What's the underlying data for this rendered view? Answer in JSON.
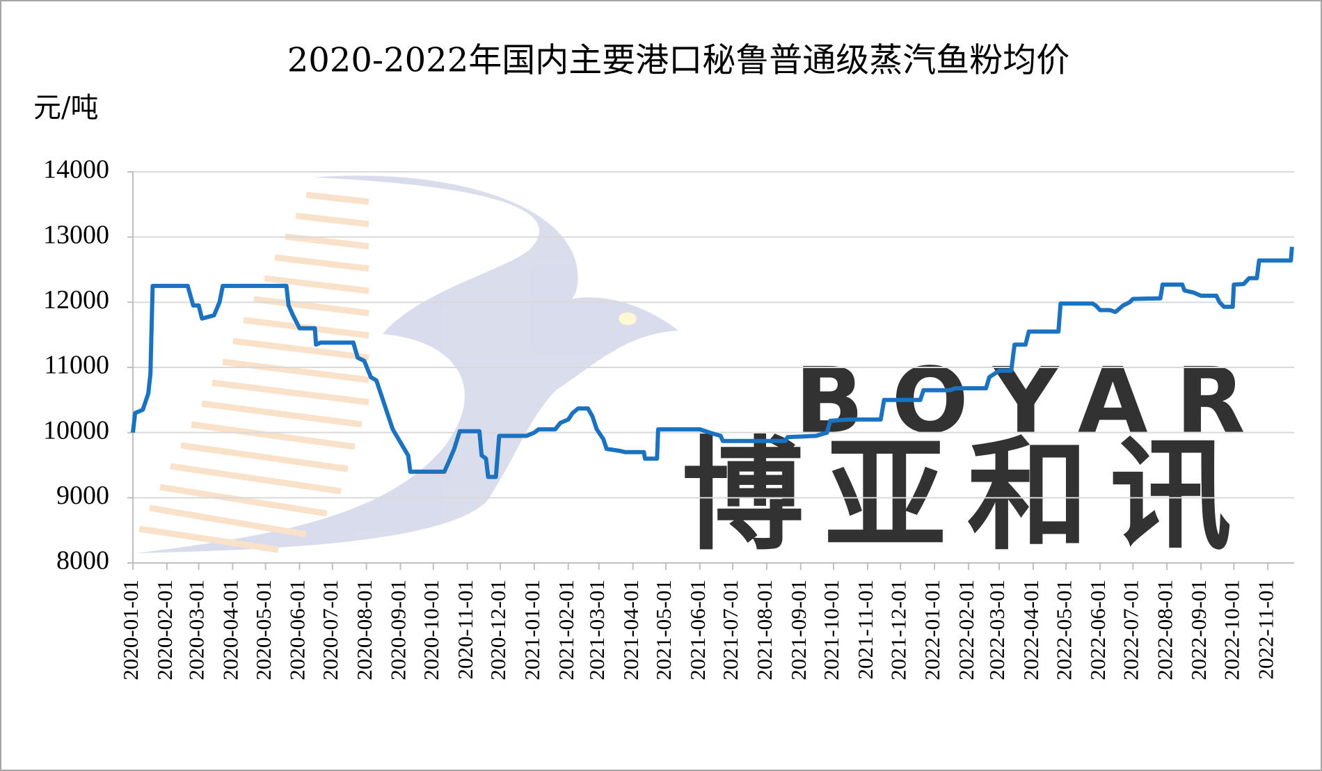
{
  "chart_data": {
    "type": "line",
    "title": "2020-2022年国内主要港口秘鲁普通级蒸汽鱼粉均价",
    "y_label": "元/吨",
    "watermark": {
      "brand": "BOYAR",
      "chinese": "博亚和讯"
    },
    "color": "#1a72c0",
    "grid": true,
    "ylim": [
      8000,
      14000
    ],
    "yticks": [
      8000,
      9000,
      10000,
      11000,
      12000,
      13000,
      14000
    ],
    "xlim": [
      "2020-01-01",
      "2022-11-25"
    ],
    "xticks": [
      "2020-01-01",
      "2020-02-01",
      "2020-03-01",
      "2020-04-01",
      "2020-05-01",
      "2020-06-01",
      "2020-07-01",
      "2020-08-01",
      "2020-09-01",
      "2020-10-01",
      "2020-11-01",
      "2020-12-01",
      "2021-01-01",
      "2021-02-01",
      "2021-03-01",
      "2021-04-01",
      "2021-05-01",
      "2021-06-01",
      "2021-07-01",
      "2021-08-01",
      "2021-09-01",
      "2021-10-01",
      "2021-11-01",
      "2021-12-01",
      "2022-01-01",
      "2022-02-01",
      "2022-03-01",
      "2022-04-01",
      "2022-05-01",
      "2022-06-01",
      "2022-07-01",
      "2022-08-01",
      "2022-09-01",
      "2022-10-01",
      "2022-11-01"
    ],
    "x": [
      "2020-01-01",
      "2020-01-03",
      "2020-01-10",
      "2020-01-15",
      "2020-01-17",
      "2020-01-19",
      "2020-02-20",
      "2020-02-25",
      "2020-03-01",
      "2020-03-04",
      "2020-03-15",
      "2020-03-20",
      "2020-03-23",
      "2020-05-20",
      "2020-05-22",
      "2020-05-26",
      "2020-06-01",
      "2020-06-15",
      "2020-06-16",
      "2020-06-20",
      "2020-07-20",
      "2020-07-24",
      "2020-07-30",
      "2020-08-05",
      "2020-08-10",
      "2020-08-15",
      "2020-08-20",
      "2020-08-25",
      "2020-09-01",
      "2020-09-08",
      "2020-09-10",
      "2020-10-11",
      "2020-10-15",
      "2020-10-20",
      "2020-10-25",
      "2020-11-12",
      "2020-11-14",
      "2020-11-18",
      "2020-11-20",
      "2020-11-27",
      "2020-11-30",
      "2020-12-25",
      "2021-01-01",
      "2021-01-05",
      "2021-01-20",
      "2021-01-25",
      "2021-02-01",
      "2021-02-05",
      "2021-02-10",
      "2021-02-19",
      "2021-02-23",
      "2021-02-27",
      "2021-03-05",
      "2021-03-08",
      "2021-03-20",
      "2021-03-25",
      "2021-04-11",
      "2021-04-12",
      "2021-04-23",
      "2021-04-24",
      "2021-06-01",
      "2021-06-10",
      "2021-06-20",
      "2021-06-22",
      "2021-08-18",
      "2021-08-20",
      "2021-09-15",
      "2021-09-25",
      "2021-09-28",
      "2021-10-15",
      "2021-11-13",
      "2021-11-16",
      "2021-12-19",
      "2021-12-22",
      "2022-01-15",
      "2022-01-20",
      "2022-02-17",
      "2022-02-20",
      "2022-03-01",
      "2022-03-12",
      "2022-03-15",
      "2022-03-25",
      "2022-03-28",
      "2022-04-24",
      "2022-04-26",
      "2022-05-25",
      "2022-05-28",
      "2022-06-01",
      "2022-06-10",
      "2022-06-15",
      "2022-06-22",
      "2022-06-28",
      "2022-07-01",
      "2022-07-26",
      "2022-07-28",
      "2022-08-15",
      "2022-08-17",
      "2022-08-25",
      "2022-09-01",
      "2022-09-15",
      "2022-09-18",
      "2022-09-22",
      "2022-09-30",
      "2022-10-01",
      "2022-10-10",
      "2022-10-15",
      "2022-10-22",
      "2022-10-24",
      "2022-11-22",
      "2022-11-23"
    ],
    "values": [
      10000,
      10300,
      10350,
      10600,
      10900,
      12250,
      12250,
      11950,
      11950,
      11750,
      11800,
      12000,
      12250,
      12250,
      11950,
      11800,
      11600,
      11600,
      11350,
      11380,
      11380,
      11150,
      11100,
      10850,
      10800,
      10550,
      10300,
      10050,
      9850,
      9650,
      9400,
      9400,
      9550,
      9750,
      10020,
      10020,
      9650,
      9600,
      9320,
      9320,
      9950,
      9950,
      10000,
      10050,
      10050,
      10150,
      10200,
      10300,
      10370,
      10370,
      10250,
      10050,
      9900,
      9750,
      9720,
      9700,
      9700,
      9600,
      9600,
      10050,
      10050,
      10000,
      9950,
      9870,
      9870,
      9930,
      9950,
      10000,
      10180,
      10200,
      10200,
      10500,
      10500,
      10650,
      10650,
      10680,
      10680,
      10850,
      10950,
      10950,
      11350,
      11350,
      11550,
      11550,
      11980,
      11980,
      11950,
      11880,
      11880,
      11850,
      11950,
      12000,
      12050,
      12060,
      12270,
      12270,
      12180,
      12150,
      12100,
      12100,
      12000,
      11930,
      11930,
      12270,
      12280,
      12370,
      12370,
      12640,
      12640,
      12850
    ]
  }
}
